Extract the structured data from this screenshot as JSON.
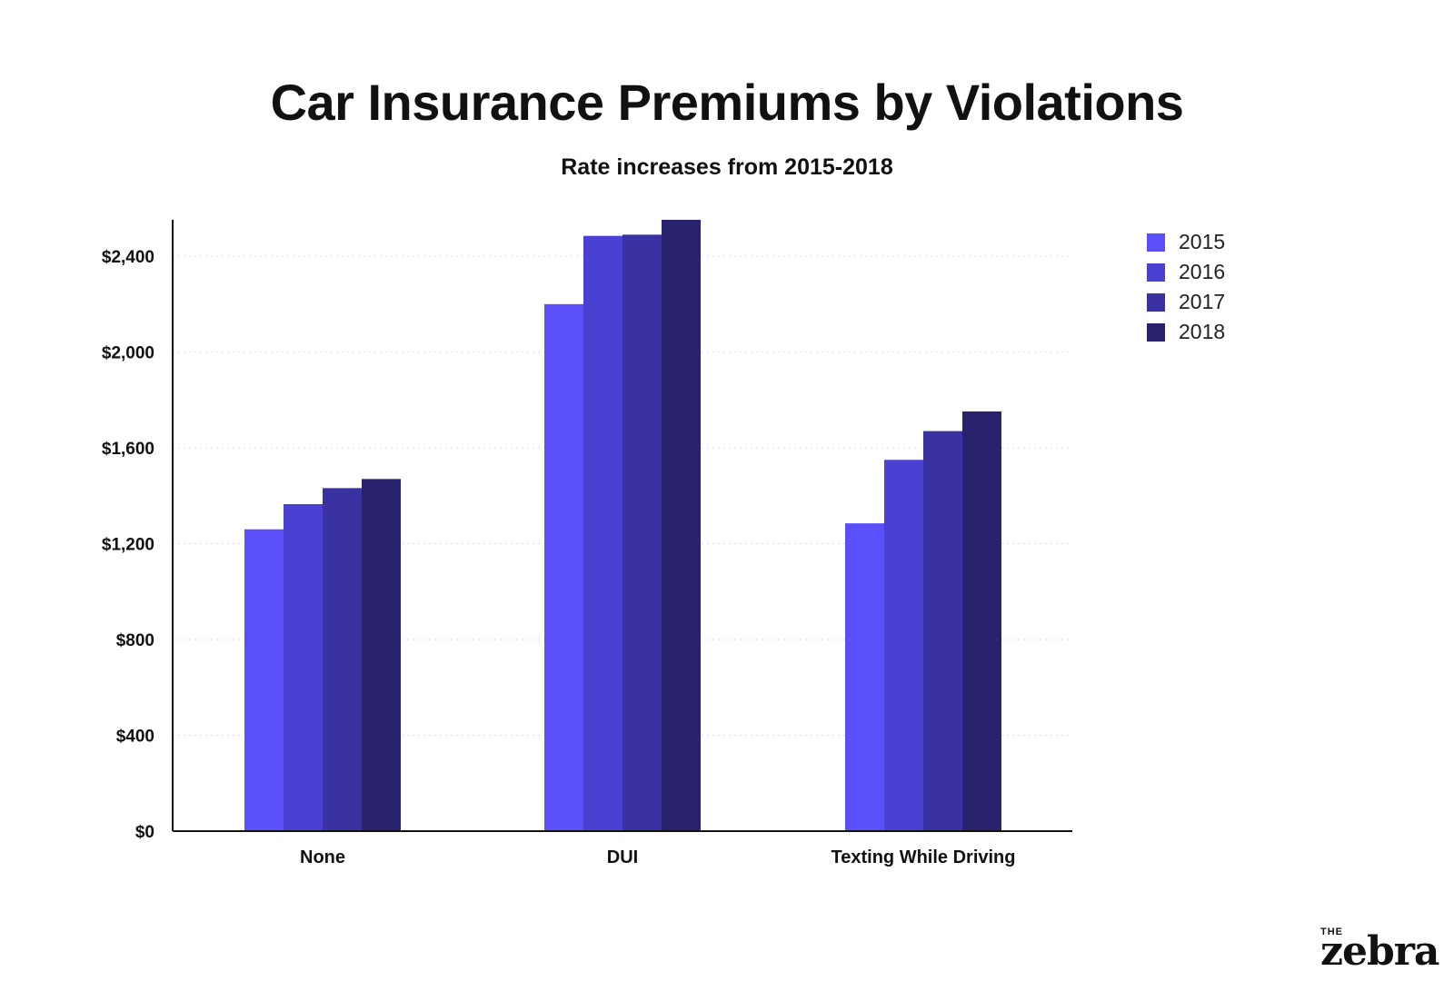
{
  "header": {
    "title": "Car Insurance Premiums by Violations",
    "subtitle": "Rate increases from 2015-2018"
  },
  "logo": {
    "the": "THE",
    "word": "zebra"
  },
  "colors": {
    "series": [
      "#5a4ff8",
      "#4a40d2",
      "#3a32a2",
      "#29236e"
    ],
    "axis": "#111111",
    "grid": "#dddddd"
  },
  "chart_data": {
    "type": "bar",
    "title": "Car Insurance Premiums by Violations",
    "subtitle": "Rate increases from 2015-2018",
    "xlabel": "",
    "ylabel": "",
    "categories": [
      "None",
      "DUI",
      "Texting While Driving"
    ],
    "series": [
      {
        "name": "2015",
        "values": [
          1260,
          2200,
          1285
        ]
      },
      {
        "name": "2016",
        "values": [
          1365,
          2485,
          1550
        ]
      },
      {
        "name": "2017",
        "values": [
          1432,
          2490,
          1670
        ]
      },
      {
        "name": "2018",
        "values": [
          1470,
          2552,
          1752
        ]
      }
    ],
    "ylim": [
      0,
      2552
    ],
    "yticks": [
      0,
      400,
      800,
      1200,
      1600,
      2000,
      2400
    ],
    "ytick_labels": [
      "$0",
      "$400",
      "$800",
      "$1,200",
      "$1,600",
      "$2,000",
      "$2,400"
    ],
    "grid": true,
    "legend": "top-right"
  }
}
